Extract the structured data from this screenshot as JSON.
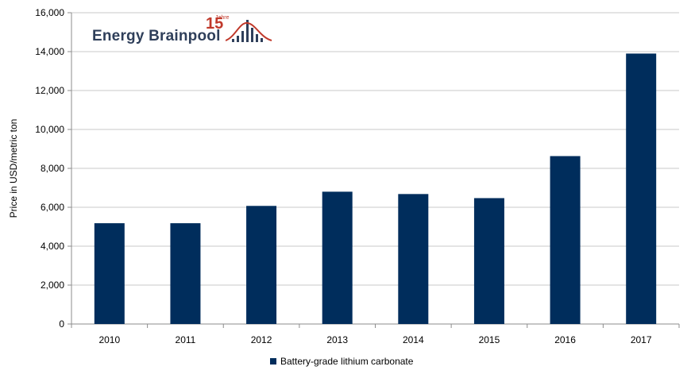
{
  "logo": {
    "brand": "Energy Brainpool",
    "anniversary": "15",
    "anniversary_suffix": "Jahre",
    "brand_color": "#2f3f5a",
    "accent_color": "#c0392b"
  },
  "chart_data": {
    "type": "bar",
    "categories": [
      "2010",
      "2011",
      "2012",
      "2013",
      "2014",
      "2015",
      "2016",
      "2017"
    ],
    "series": [
      {
        "name": "Battery-grade lithium carbonate",
        "color": "#002d5c",
        "values": [
          5180,
          5180,
          6070,
          6800,
          6680,
          6470,
          8630,
          13900
        ]
      }
    ],
    "ylabel": "Price in USD/metric ton",
    "xlabel": "",
    "ylim": [
      0,
      16000
    ],
    "yticks": [
      0,
      2000,
      4000,
      6000,
      8000,
      10000,
      12000,
      14000,
      16000
    ],
    "ytick_labels": [
      "0",
      "2,000",
      "4,000",
      "6,000",
      "8,000",
      "10,000",
      "12,000",
      "14,000",
      "16,000"
    ],
    "grid": true,
    "legend_position": "bottom-center"
  }
}
